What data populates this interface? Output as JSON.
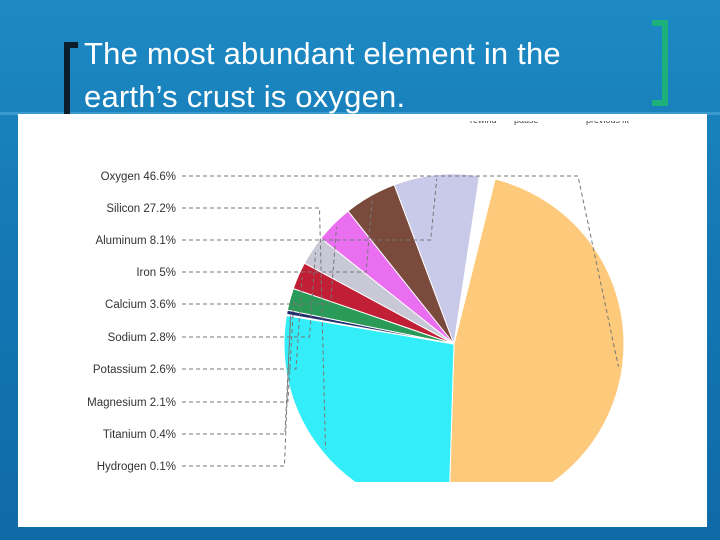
{
  "slide": {
    "title_line1": "The most abundant element in the",
    "title_line2": "earth’s crust is oxygen."
  },
  "toolbar_fragments": [
    "rewind",
    "pause",
    "previous",
    "fit"
  ],
  "elements": [
    {
      "label": "Oxygen 46.6%",
      "name": "Oxygen",
      "percent": 46.6,
      "color": "#fdc97a"
    },
    {
      "label": "Silicon 27.2%",
      "name": "Silicon",
      "percent": 27.2,
      "color": "#33eef8"
    },
    {
      "label": "Aluminum 8.1%",
      "name": "Aluminum",
      "percent": 8.1,
      "color": "#c9c9ea"
    },
    {
      "label": "Iron 5%",
      "name": "Iron",
      "percent": 5,
      "color": "#7a4a3c"
    },
    {
      "label": "Calcium 3.6%",
      "name": "Calcium",
      "percent": 3.6,
      "color": "#ea6ff0"
    },
    {
      "label": "Sodium 2.8%",
      "name": "Sodium",
      "percent": 2.8,
      "color": "#c8c8d6"
    },
    {
      "label": "Potassium 2.6%",
      "name": "Potassium",
      "percent": 2.6,
      "color": "#c01f35"
    },
    {
      "label": "Magnesium 2.1%",
      "name": "Magnesium",
      "percent": 2.1,
      "color": "#2a9a58"
    },
    {
      "label": "Titanium 0.4%",
      "name": "Titanium",
      "percent": 0.4,
      "color": "#24306e"
    },
    {
      "label": "Hydrogen 0.1%",
      "name": "Hydrogen",
      "percent": 0.1,
      "color": "#8fe6ee"
    }
  ]
}
